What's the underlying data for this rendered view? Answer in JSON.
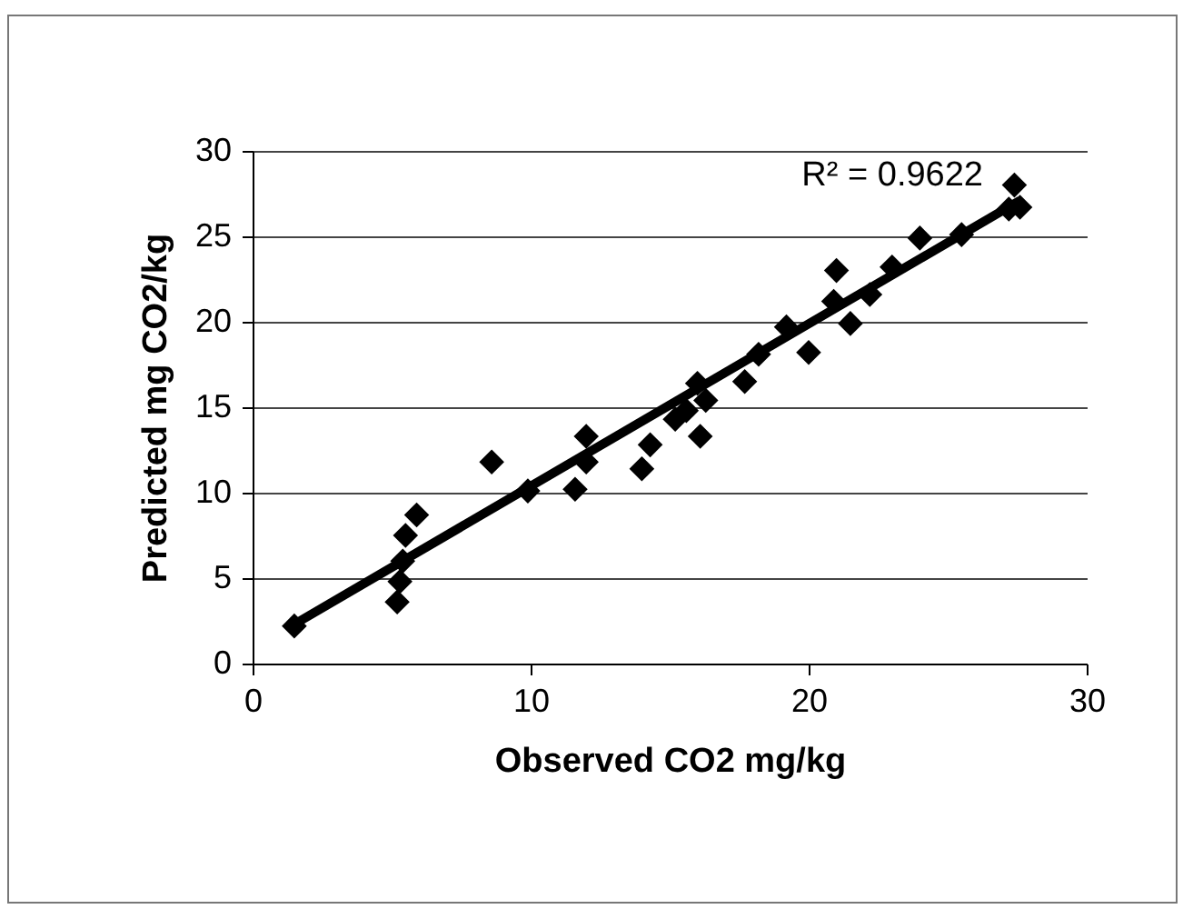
{
  "chart_data": {
    "type": "scatter",
    "xlabel": "Observed CO2 mg/kg",
    "ylabel": "Predicted mg CO2/kg",
    "xlim": [
      0,
      30
    ],
    "xticks": [
      0,
      10,
      20,
      30
    ],
    "ylim": [
      0,
      30
    ],
    "yticks": [
      0,
      5,
      10,
      15,
      20,
      25,
      30
    ],
    "grid": "y",
    "marker": "diamond",
    "annotations": [
      "R² = 0.9622"
    ],
    "series": [
      {
        "color": "#000000",
        "x": [
          1.5,
          5.2,
          5.3,
          5.4,
          5.5,
          5.9,
          8.6,
          9.9,
          11.6,
          12.0,
          12.0,
          14.0,
          14.3,
          15.2,
          15.6,
          16.0,
          16.1,
          16.3,
          17.7,
          18.2,
          19.2,
          20.0,
          20.9,
          21.0,
          21.5,
          22.2,
          23.0,
          24.0,
          25.5,
          27.2,
          27.4,
          27.6
        ],
        "values": [
          2.2,
          3.6,
          4.8,
          6.0,
          7.5,
          8.7,
          11.8,
          10.1,
          10.2,
          11.8,
          13.3,
          11.4,
          12.8,
          14.3,
          14.8,
          16.4,
          13.3,
          15.4,
          16.5,
          18.1,
          19.7,
          18.2,
          21.2,
          23.0,
          19.9,
          21.6,
          23.2,
          24.9,
          25.1,
          26.6,
          28.0,
          26.7
        ]
      },
      {
        "type": "line",
        "color": "#000000",
        "marker": "none",
        "line_style": "solid",
        "x": [
          1.5,
          27.6
        ],
        "values": [
          2.3,
          27.1
        ]
      }
    ]
  }
}
